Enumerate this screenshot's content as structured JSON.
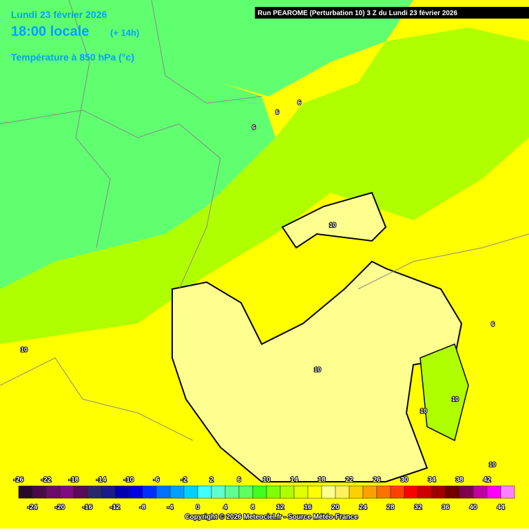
{
  "header": {
    "date": "Lundi 23 février 2026",
    "time": "18:00 locale",
    "offset": "(+ 14h)",
    "variable": "Température à 850 hPa (°c)",
    "run": "Run PEAROME (Perturbation 10) 3 Z du Lundi 23 février 2026"
  },
  "contour_labels": [
    "6",
    "6",
    "6",
    "10",
    "10",
    "10",
    "10",
    "10",
    "6",
    "10"
  ],
  "colorbar": {
    "top_labels": [
      "-26",
      "-22",
      "-18",
      "-14",
      "-10",
      "-6",
      "-2",
      "2",
      "6",
      "10",
      "14",
      "18",
      "22",
      "26",
      "30",
      "34",
      "38",
      "42"
    ],
    "bottom_labels": [
      "-24",
      "-20",
      "-16",
      "-12",
      "-8",
      "-4",
      "0",
      "4",
      "8",
      "12",
      "16",
      "20",
      "24",
      "28",
      "32",
      "36",
      "40",
      "44"
    ],
    "colors": [
      "#2a0a2a",
      "#4a0a4a",
      "#6a0a6a",
      "#800a80",
      "#5a0a5a",
      "#2a2a6a",
      "#1a1a8a",
      "#0000b0",
      "#0000e0",
      "#0030ff",
      "#0070ff",
      "#00a0ff",
      "#00d0ff",
      "#40ffff",
      "#60ffd0",
      "#60ff90",
      "#60ff60",
      "#40ff20",
      "#80ff00",
      "#b0ff00",
      "#e0ff00",
      "#ffff00",
      "#ffff90",
      "#fff060",
      "#ffd000",
      "#ffa000",
      "#ff7000",
      "#ff4000",
      "#ff0000",
      "#d00000",
      "#a00000",
      "#700000",
      "#800050",
      "#c000a0",
      "#ff00ff",
      "#ff80ff"
    ]
  },
  "copyright": "Copyright © 2026 Meteociel.fr - Source Météo-France"
}
